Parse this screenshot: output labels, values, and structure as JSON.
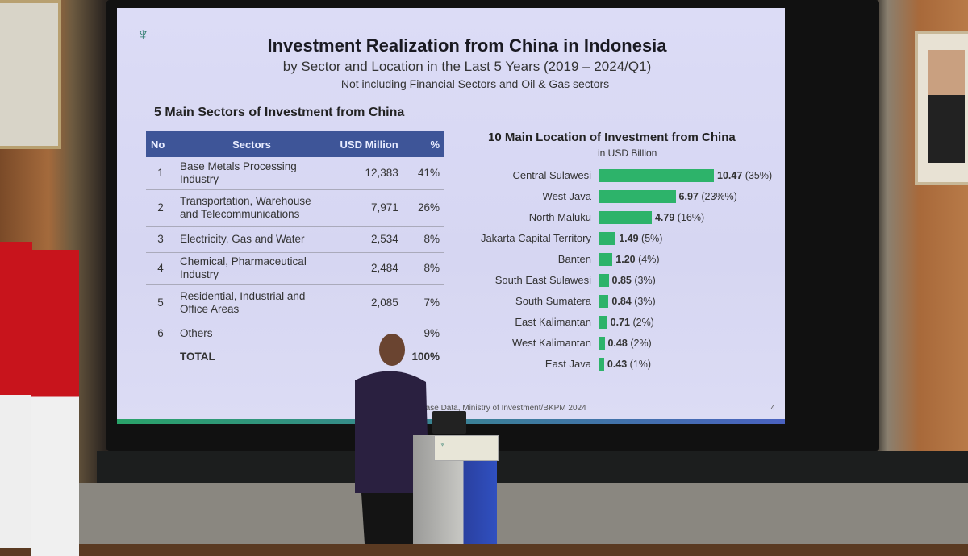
{
  "slide": {
    "title": "Investment Realization from China in Indonesia",
    "subtitle": "by Sector and Location in the Last 5 Years (2019 – 2024/Q1)",
    "note": "Not including Financial Sectors and Oil & Gas sectors",
    "logo_icon": "bkpm-logo-icon",
    "source": "Base Data, Ministry of Investment/BKPM 2024",
    "page_number": "4",
    "accent_color": "#3e5598",
    "bar_color": "#2db36a"
  },
  "sectors_table": {
    "heading": "5 Main Sectors of Investment from China",
    "columns": [
      "No",
      "Sectors",
      "USD Million",
      "%"
    ],
    "rows": [
      {
        "no": "1",
        "sector": "Base Metals Processing Industry",
        "usd": "12,383",
        "pct": "41%"
      },
      {
        "no": "2",
        "sector": "Transportation, Warehouse and Telecommunications",
        "usd": "7,971",
        "pct": "26%"
      },
      {
        "no": "3",
        "sector": "Electricity, Gas and Water",
        "usd": "2,534",
        "pct": "8%"
      },
      {
        "no": "4",
        "sector": "Chemical, Pharmaceutical Industry",
        "usd": "2,484",
        "pct": "8%"
      },
      {
        "no": "5",
        "sector": "Residential, Industrial and Office Areas",
        "usd": "2,085",
        "pct": "7%"
      },
      {
        "no": "6",
        "sector": "Others",
        "usd": "",
        "pct": "9%"
      }
    ],
    "total": {
      "label": "TOTAL",
      "pct": "100%"
    }
  },
  "chart_data": {
    "type": "bar",
    "orientation": "horizontal",
    "title": "10 Main Location of Investment from China",
    "unit_label": "in USD Billion",
    "categories": [
      "Central Sulawesi",
      "West Java",
      "North Maluku",
      "Jakarta Capital Territory",
      "Banten",
      "South East Sulawesi",
      "South Sumatera",
      "East Kalimantan",
      "West Kalimantan",
      "East Java"
    ],
    "values": [
      10.47,
      6.97,
      4.79,
      1.49,
      1.2,
      0.85,
      0.84,
      0.71,
      0.48,
      0.43
    ],
    "value_labels": [
      "10.47",
      "6.97",
      "4.79",
      "1.49",
      "1.20",
      "0.85",
      "0.84",
      "0.71",
      "0.48",
      "0.43"
    ],
    "pct_labels": [
      "(35%)",
      "(23%%)",
      "(16%)",
      "(5%)",
      "(4%)",
      "(3%)",
      "(3%)",
      "(2%)",
      "(2%)",
      "(1%)"
    ],
    "grid": false
  }
}
